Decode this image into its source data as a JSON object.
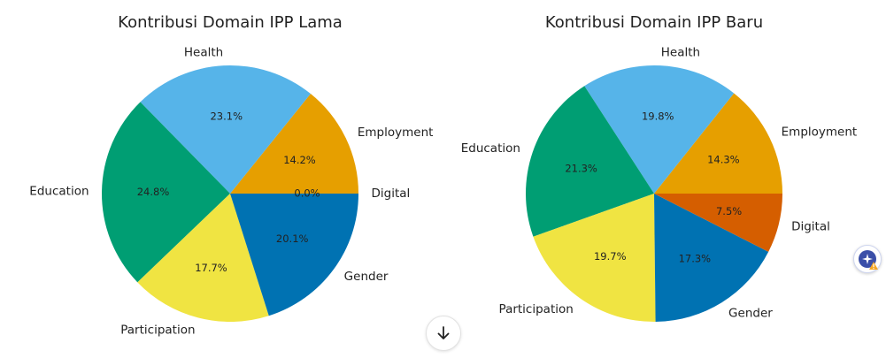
{
  "chart_data": [
    {
      "type": "pie",
      "title": "Kontribusi Domain IPP Lama",
      "slices": [
        {
          "label": "Employment",
          "value": 14.2,
          "pct_label": "14.2%",
          "color": "#E69F00"
        },
        {
          "label": "Health",
          "value": 23.1,
          "pct_label": "23.1%",
          "color": "#56B4E9"
        },
        {
          "label": "Education",
          "value": 24.8,
          "pct_label": "24.8%",
          "color": "#009E73"
        },
        {
          "label": "Participation",
          "value": 17.7,
          "pct_label": "17.7%",
          "color": "#F0E442"
        },
        {
          "label": "Gender",
          "value": 20.1,
          "pct_label": "20.1%",
          "color": "#0072B2"
        },
        {
          "label": "Digital",
          "value": 0.0,
          "pct_label": "0.0%",
          "color": "#D55E00"
        }
      ]
    },
    {
      "type": "pie",
      "title": "Kontribusi Domain IPP Baru",
      "slices": [
        {
          "label": "Employment",
          "value": 14.3,
          "pct_label": "14.3%",
          "color": "#E69F00"
        },
        {
          "label": "Health",
          "value": 19.8,
          "pct_label": "19.8%",
          "color": "#56B4E9"
        },
        {
          "label": "Education",
          "value": 21.3,
          "pct_label": "21.3%",
          "color": "#009E73"
        },
        {
          "label": "Participation",
          "value": 19.7,
          "pct_label": "19.7%",
          "color": "#F0E442"
        },
        {
          "label": "Gender",
          "value": 17.3,
          "pct_label": "17.3%",
          "color": "#0072B2"
        },
        {
          "label": "Digital",
          "value": 7.5,
          "pct_label": "7.5%",
          "color": "#D55E00"
        }
      ]
    }
  ],
  "controls": {
    "scroll_down_icon": "arrow-down-icon",
    "assistant_icon": "sparkle-warning-icon"
  }
}
